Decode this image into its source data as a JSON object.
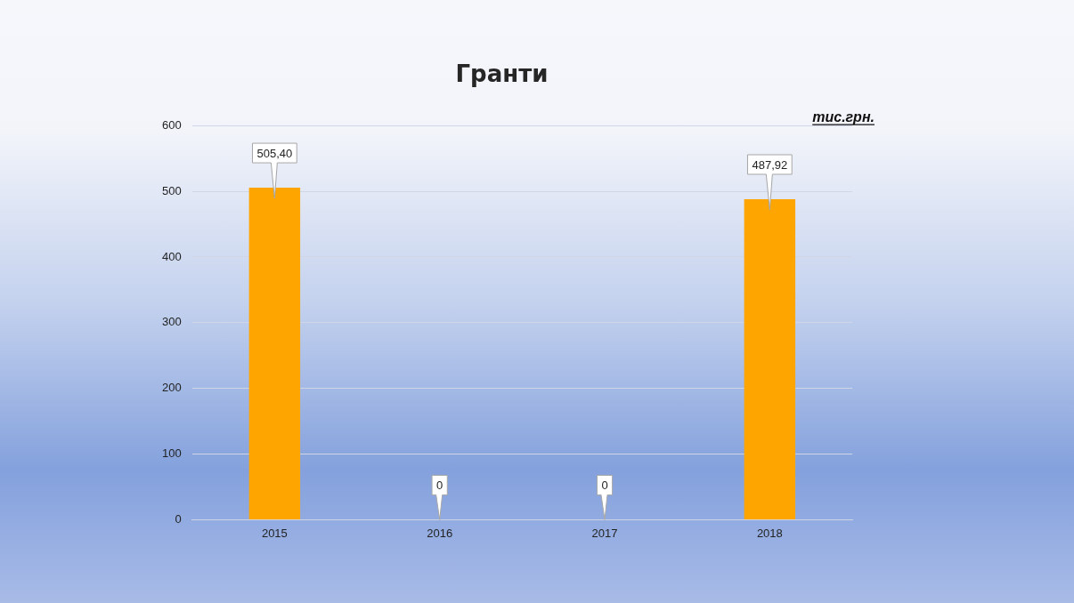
{
  "chart_data": {
    "type": "bar",
    "title": "Гранти",
    "categories": [
      "2015",
      "2016",
      "2017",
      "2018"
    ],
    "values": [
      505.4,
      0,
      0,
      487.92
    ],
    "value_labels": [
      "505,40",
      "0",
      "0",
      "487,92"
    ],
    "color": "#ffa500",
    "ylim": [
      0,
      600
    ],
    "yticks": [
      0,
      100,
      200,
      300,
      400,
      500,
      600
    ],
    "grid": "y",
    "legend": false,
    "annotations": [
      "тис.грн."
    ]
  }
}
